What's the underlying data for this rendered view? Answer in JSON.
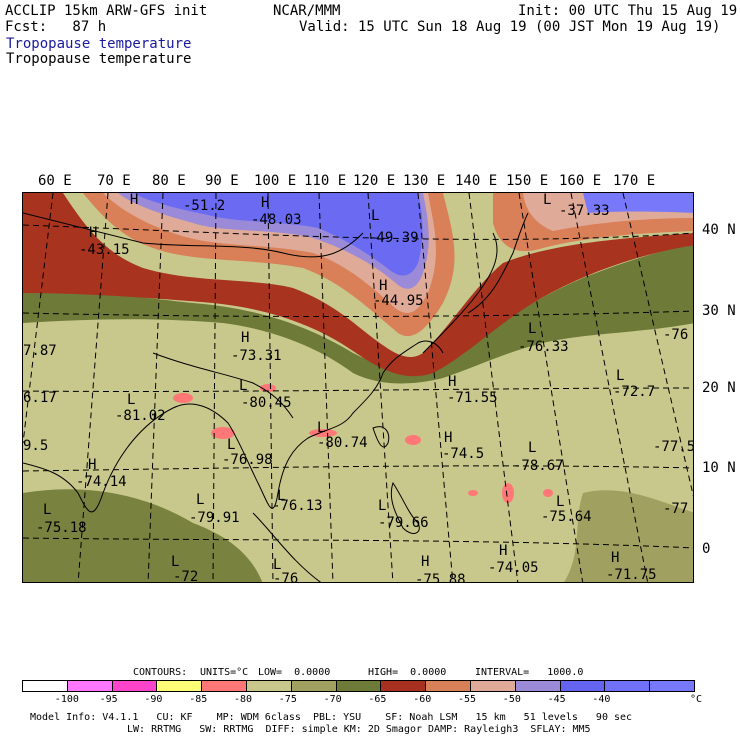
{
  "header": {
    "model": "ACCLIP 15km ARW-GFS init",
    "center": "NCAR/MMM",
    "init": "Init: 00 UTC Thu 15 Aug 19",
    "fcst": "Fcst:   87 h",
    "valid": "Valid: 15 UTC Sun 18 Aug 19 (00 JST Mon 19 Aug 19)",
    "field_title_1": "Tropopause temperature",
    "field_title_2": "Tropopause temperature"
  },
  "map": {
    "lon_labels": [
      "60 E",
      "70 E",
      "80 E",
      "90 E",
      "100 E",
      "110 E",
      "120 E",
      "130 E",
      "140 E",
      "150 E",
      "160 E",
      "170 E"
    ],
    "lat_labels": [
      "40 N",
      "30 N",
      "20 N",
      "10 N",
      "0"
    ],
    "edge_labels": [
      "7.87",
      "6.17",
      "9.5",
      "-76",
      "-77.5",
      "-77"
    ],
    "features": [
      {
        "type": "H",
        "value": "-51.2"
      },
      {
        "type": "H",
        "value": "-48.03"
      },
      {
        "type": "L",
        "value": "-49.39"
      },
      {
        "type": "H",
        "value": "-43.15"
      },
      {
        "type": "H",
        "value": "-44.95"
      },
      {
        "type": "L",
        "value": "-37.33"
      },
      {
        "type": "L",
        "value": "-76.33"
      },
      {
        "type": "H",
        "value": "-73.31"
      },
      {
        "type": "L",
        "value": "-80.45"
      },
      {
        "type": "H",
        "value": "-71.55"
      },
      {
        "type": "L",
        "value": "-72.7"
      },
      {
        "type": "L",
        "value": "-81.02"
      },
      {
        "type": "L",
        "value": "-80.74"
      },
      {
        "type": "H",
        "value": "-74.5"
      },
      {
        "type": "L",
        "value": "-76.98"
      },
      {
        "type": "L",
        "value": "-78.67"
      },
      {
        "type": "H",
        "value": "-74.14"
      },
      {
        "type": "L",
        "value": "-76.13"
      },
      {
        "type": "L",
        "value": "-75.18"
      },
      {
        "type": "L",
        "value": "-79.91"
      },
      {
        "type": "L",
        "value": "-79.66"
      },
      {
        "type": "L",
        "value": "-75.64"
      },
      {
        "type": "H",
        "value": "-74.05"
      },
      {
        "type": "H",
        "value": "-71.75"
      },
      {
        "type": "L",
        "value": "-72"
      },
      {
        "type": "L",
        "value": "-76"
      },
      {
        "type": "H",
        "value": "-75.88"
      }
    ]
  },
  "contours": {
    "label": "CONTOURS:",
    "units": "UNITS=°C",
    "low": "LOW=  0.0000",
    "high": "HIGH=  0.0000",
    "interval": "INTERVAL=   1000.0"
  },
  "colorbar": {
    "colors": [
      "#ffffff",
      "#ff77ff",
      "#ff44cc",
      "#ffff77",
      "#ff7777",
      "#c8c88c",
      "#a0a060",
      "#6e7a38",
      "#a83020",
      "#d88058",
      "#e0aa98",
      "#9a8ad8",
      "#6464f0",
      "#7070f8",
      "#7878fa"
    ],
    "ticks": [
      "-100",
      "-95",
      "-90",
      "-85",
      "-80",
      "-75",
      "-70",
      "-65",
      "-60",
      "-55",
      "-50",
      "-45",
      "-40"
    ],
    "unit": "°C"
  },
  "footer": {
    "line1": "Model Info: V4.1.1   CU: KF    MP: WDM 6class  PBL: YSU    SF: Noah LSM   15 km   51 levels   90 sec",
    "line2": "LW: RRTMG   SW: RRTMG  DIFF: simple KM: 2D Smagor DAMP: Rayleigh3  SFLAY: MM5"
  }
}
